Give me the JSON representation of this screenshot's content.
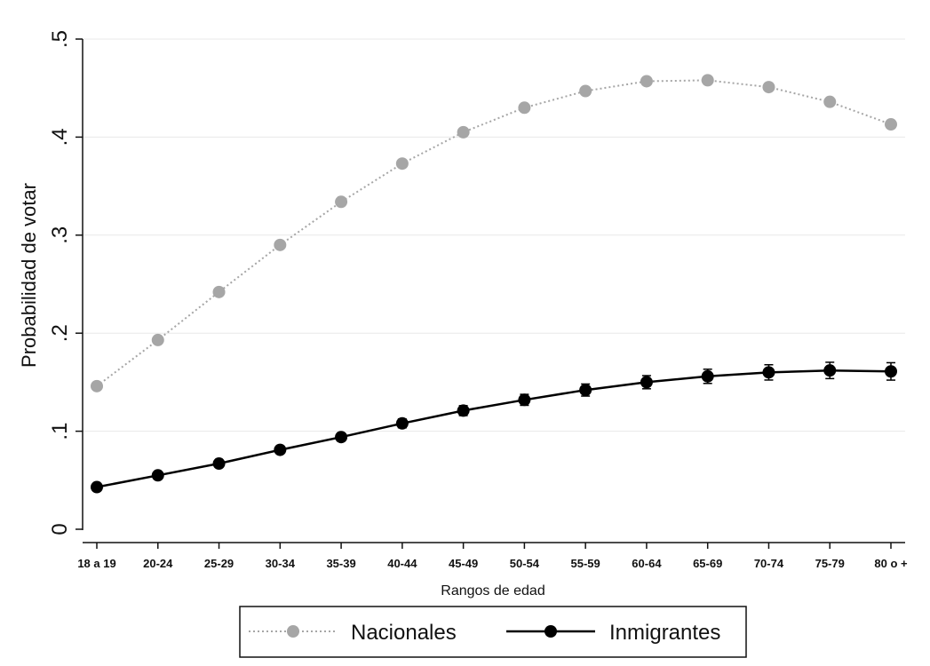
{
  "chart_data": {
    "type": "line",
    "title": "",
    "xlabel": "Rangos de edad",
    "ylabel": "Probabilidad de votar",
    "categories": [
      "18 a 19",
      "20-24",
      "25-29",
      "30-34",
      "35-39",
      "40-44",
      "45-49",
      "50-54",
      "55-59",
      "60-64",
      "65-69",
      "70-74",
      "75-79",
      "80 o +"
    ],
    "yticks": [
      {
        "value": 0,
        "label": "0"
      },
      {
        "value": 0.1,
        "label": ".1"
      },
      {
        "value": 0.2,
        "label": ".2"
      },
      {
        "value": 0.3,
        "label": ".3"
      },
      {
        "value": 0.4,
        "label": ".4"
      },
      {
        "value": 0.5,
        "label": ".5"
      }
    ],
    "ylim": [
      0,
      0.5
    ],
    "grid": true,
    "legend_position": "bottom",
    "series": [
      {
        "name": "Nacionales",
        "color": "#a6a6a6",
        "line_style": "dotted",
        "values": [
          0.146,
          0.193,
          0.242,
          0.29,
          0.334,
          0.373,
          0.405,
          0.43,
          0.447,
          0.457,
          0.458,
          0.451,
          0.436,
          0.413
        ]
      },
      {
        "name": "Inmigrantes",
        "color": "#000000",
        "line_style": "solid",
        "values": [
          0.043,
          0.055,
          0.067,
          0.081,
          0.094,
          0.108,
          0.121,
          0.132,
          0.142,
          0.15,
          0.156,
          0.16,
          0.162,
          0.161
        ]
      }
    ]
  }
}
